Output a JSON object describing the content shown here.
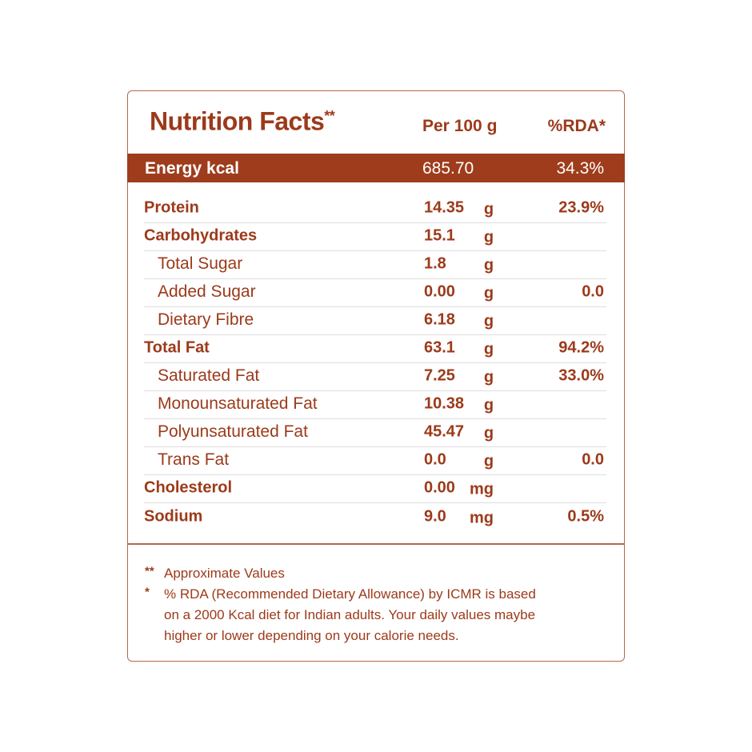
{
  "header": {
    "title": "Nutrition Facts",
    "title_mark": "**",
    "per": "Per 100 g",
    "rda": "%RDA*"
  },
  "energy": {
    "name": "Energy kcal",
    "amount": "685.70",
    "rda": "34.3%"
  },
  "rows": [
    {
      "name": "Protein",
      "amount": "14.35",
      "unit": "g",
      "rda": "23.9%"
    },
    {
      "name": "Carbohydrates",
      "amount": "15.1",
      "unit": "g"
    },
    {
      "name": "Total Sugar",
      "amount": "1.8",
      "unit": "g"
    },
    {
      "name": "Added Sugar",
      "amount": "0.00",
      "unit": "g",
      "rda": "0.0"
    },
    {
      "name": "Dietary Fibre",
      "amount": "6.18",
      "unit": "g"
    },
    {
      "name": "Total Fat",
      "amount": "63.1",
      "unit": "g",
      "rda": "94.2%"
    },
    {
      "name": "Saturated Fat",
      "amount": "7.25",
      "unit": "g",
      "rda": "33.0%"
    },
    {
      "name": "Monounsaturated Fat",
      "amount": "10.38",
      "unit": "g"
    },
    {
      "name": "Polyunsaturated Fat",
      "amount": "45.47",
      "unit": "g"
    },
    {
      "name": "Trans Fat",
      "amount": "0.0",
      "unit": "g",
      "rda": "0.0"
    },
    {
      "name": "Cholesterol",
      "amount": "0.00",
      "unit": "mg"
    },
    {
      "name": "Sodium",
      "amount": "9.0",
      "unit": "mg",
      "rda": "0.5%"
    }
  ],
  "footnotes": [
    {
      "mark": "**",
      "lines": [
        "Approximate Values"
      ]
    },
    {
      "mark": "*",
      "lines": [
        "% RDA (Recommended Dietary Allowance) by ICMR is based",
        "on a 2000 Kcal diet for Indian adults. Your daily values maybe",
        "higher or lower depending on your calorie needs."
      ]
    }
  ]
}
